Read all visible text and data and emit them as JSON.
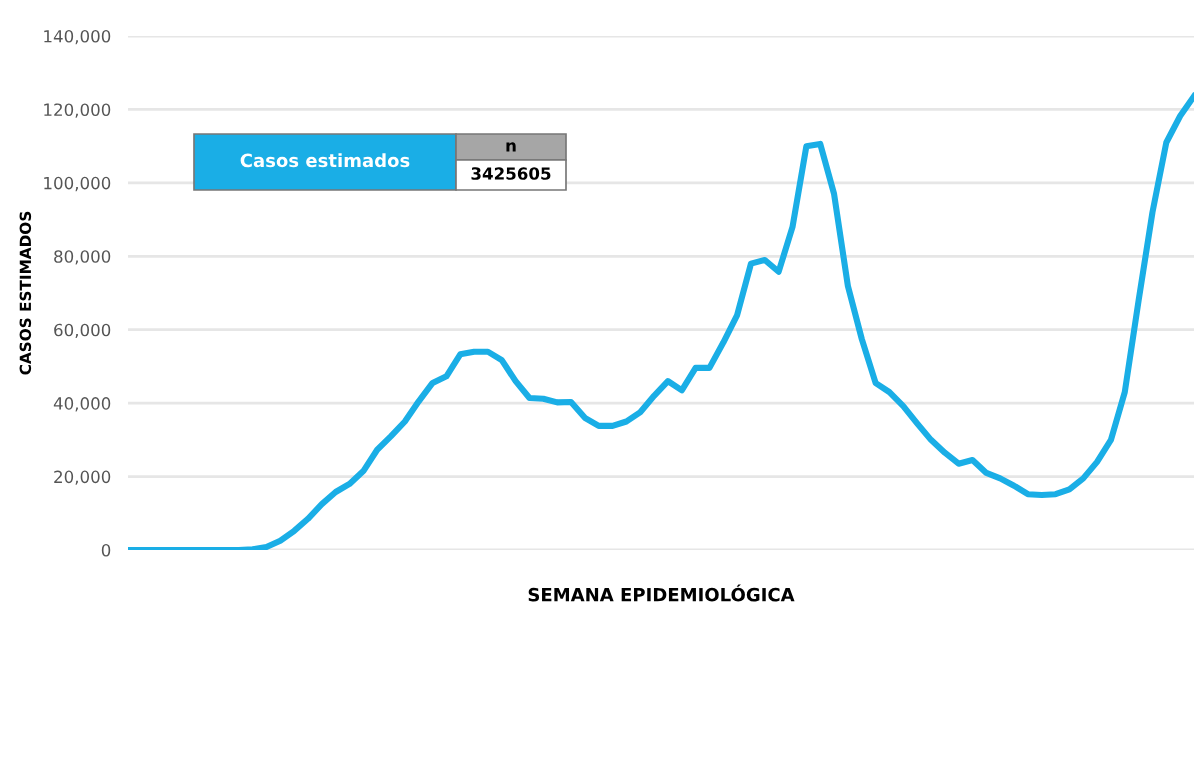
{
  "chart_data": {
    "type": "line",
    "xlabel": "SEMANA EPIDEMIOLÓGICA",
    "ylabel": "CASOS ESTIMADOS",
    "categories": [
      null,
      null,
      null,
      null,
      null,
      null,
      null,
      null,
      null,
      null,
      null,
      null,
      null,
      null,
      null,
      null,
      null,
      null,
      null,
      null,
      null,
      null,
      null,
      null,
      null,
      null,
      null,
      null,
      null,
      null,
      null,
      null,
      null,
      null,
      null,
      null,
      null,
      null,
      null,
      null,
      null,
      null,
      null,
      null,
      null,
      null,
      null,
      null,
      null,
      null,
      null,
      null,
      null,
      null,
      null,
      null,
      null,
      null,
      null,
      null,
      null,
      null,
      null,
      null,
      null,
      null,
      null,
      null,
      null,
      null,
      null,
      null,
      null,
      null,
      null,
      null,
      null,
      null
    ],
    "series": [
      {
        "color": "#1aaee6",
        "values": [
          0,
          0,
          0,
          0,
          0,
          0,
          0,
          0,
          0,
          200,
          800,
          2500,
          5200,
          8500,
          12500,
          15800,
          18000,
          21500,
          27300,
          31000,
          35000,
          40500,
          45500,
          47300,
          53300,
          54000,
          54000,
          51700,
          46000,
          41400,
          41200,
          40200,
          40300,
          36000,
          33800,
          33800,
          35000,
          37500,
          42000,
          46000,
          43500,
          49600,
          49600,
          56500,
          64000,
          78000,
          79000,
          75800,
          88000,
          110000,
          110600,
          97000,
          71900,
          57500,
          45500,
          43000,
          39200,
          34500,
          30000,
          26500,
          23500,
          24500,
          21000,
          19500,
          17500,
          15200,
          15000,
          15200,
          16500,
          19500,
          24000,
          30000,
          43000,
          68000,
          92000,
          111000,
          118200,
          123600
        ]
      }
    ],
    "ylim": [
      0,
      140000
    ],
    "yticks": [
      0,
      {
        "value": 20000,
        "label": "20,000"
      },
      {
        "value": 40000,
        "label": "40,000"
      },
      {
        "value": 60000,
        "label": "60,000"
      },
      {
        "value": 80000,
        "label": "80,000"
      },
      {
        "value": 100000,
        "label": "100,000"
      },
      {
        "value": 120000,
        "label": "120,000"
      },
      {
        "value": 140000,
        "label": "140,000"
      }
    ],
    "grid": "y",
    "marker": "none",
    "line_style": "solid",
    "annotations": [
      "Casos estimados",
      "n",
      "3425605"
    ]
  }
}
